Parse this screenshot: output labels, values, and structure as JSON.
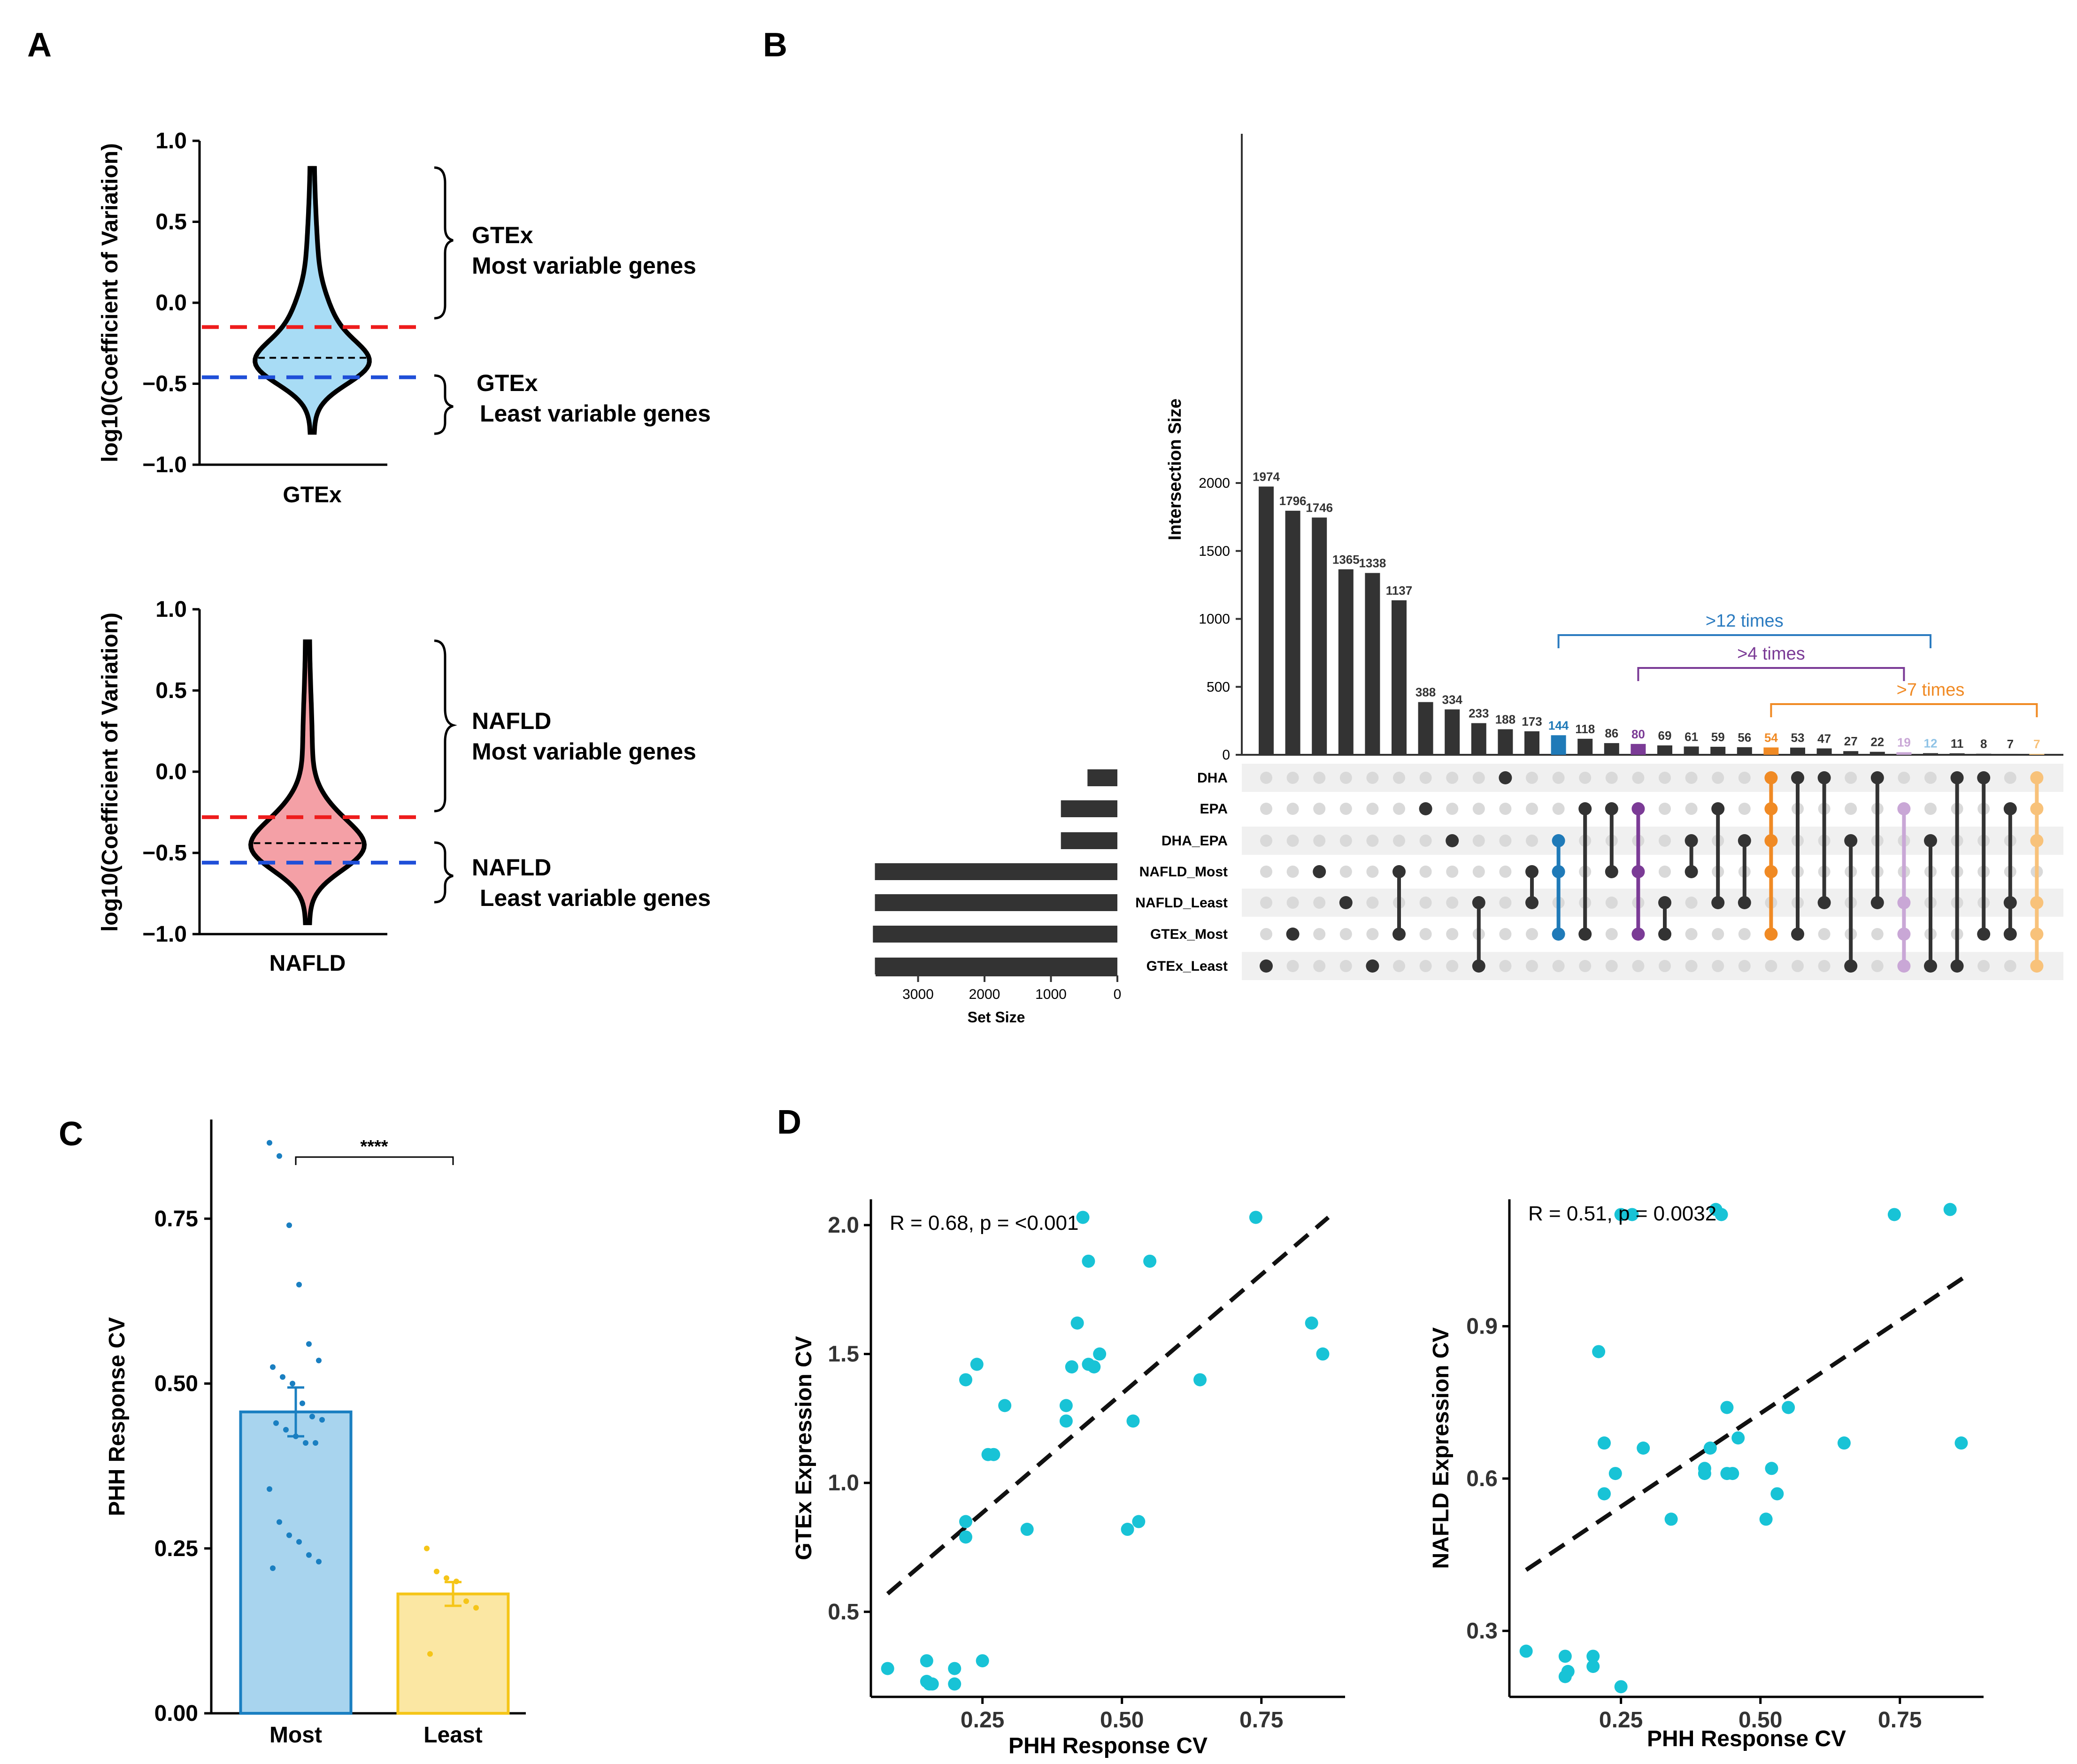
{
  "panel_labels": [
    "A",
    "B",
    "C",
    "D"
  ],
  "chart_data": [
    {
      "id": "A_top",
      "type": "violin",
      "group": "GTEx",
      "ylabel": "log10(Coefficient of Variation)",
      "xlabel": "GTEx",
      "ylim": [
        -1.0,
        1.0
      ],
      "yticks": [
        "1.0",
        "0.5",
        "0.0",
        "−0.5",
        "−1.0"
      ],
      "range": [
        -0.8,
        0.83
      ],
      "median": -0.34,
      "most_threshold": -0.15,
      "least_threshold": -0.46,
      "fill": "#a8dcf5",
      "annotations": {
        "most_line1": "GTEx",
        "most_line2": "Most variable genes",
        "least_line1": "GTEx",
        "least_line2": "Least variable genes"
      }
    },
    {
      "id": "A_bottom",
      "type": "violin",
      "group": "NAFLD",
      "ylabel": "log10(Coefficient of Variation)",
      "xlabel": "NAFLD",
      "ylim": [
        -1.0,
        1.0
      ],
      "yticks": [
        "1.0",
        "0.5",
        "0.0",
        "−0.5",
        "−1.0"
      ],
      "range": [
        -0.93,
        0.8
      ],
      "median": -0.44,
      "most_threshold": -0.28,
      "least_threshold": -0.56,
      "fill": "#f4a0a6",
      "annotations": {
        "most_line1": "NAFLD",
        "most_line2": "Most variable genes",
        "least_line1": "NAFLD",
        "least_line2": "Least variable genes"
      }
    },
    {
      "id": "B",
      "type": "upset",
      "ylabel": "Intersection Size",
      "yticks": [
        0,
        500,
        1000,
        1500,
        2000
      ],
      "set_size_label": "Set Size",
      "set_size_ticks": [
        "3000",
        "2000",
        "1000",
        "0"
      ],
      "sets": [
        "DHA",
        "EPA",
        "DHA_EPA",
        "NAFLD_Most",
        "NAFLD_Least",
        "GTEx_Most",
        "GTEx_Least"
      ],
      "set_sizes": [
        450,
        850,
        850,
        3650,
        3650,
        3680,
        3650
      ],
      "intersection_sizes": [
        1974,
        1796,
        1746,
        1365,
        1338,
        1137,
        388,
        334,
        233,
        188,
        173,
        144,
        118,
        86,
        80,
        69,
        61,
        59,
        56,
        54,
        53,
        47,
        27,
        22,
        19,
        12,
        11,
        8,
        7,
        7
      ],
      "intersection_members": [
        [
          6
        ],
        [
          5
        ],
        [
          3
        ],
        [
          4
        ],
        [
          6
        ],
        [
          3,
          5
        ],
        [
          1
        ],
        [
          2
        ],
        [
          4,
          6
        ],
        [
          0
        ],
        [
          3,
          4
        ],
        [
          2,
          3,
          5
        ],
        [
          1,
          5
        ],
        [
          1,
          3
        ],
        [
          1,
          3,
          5
        ],
        [
          4,
          5
        ],
        [
          2,
          3
        ],
        [
          1,
          4
        ],
        [
          2,
          4
        ],
        [
          0,
          1,
          2,
          3,
          5
        ],
        [
          0,
          5
        ],
        [
          0,
          4
        ],
        [
          2,
          6
        ],
        [
          0,
          4
        ],
        [
          1,
          4,
          5,
          6
        ],
        [
          2,
          6
        ],
        [
          0,
          6
        ],
        [
          0,
          5
        ],
        [
          1,
          4,
          5
        ],
        [
          0,
          1,
          2,
          4,
          5,
          6
        ]
      ],
      "highlight_colors": [
        "#333333",
        "#333333",
        "#333333",
        "#333333",
        "#333333",
        "#333333",
        "#333333",
        "#333333",
        "#333333",
        "#333333",
        "#333333",
        "#1f7ab8",
        "#333333",
        "#333333",
        "#7b3b96",
        "#333333",
        "#333333",
        "#333333",
        "#333333",
        "#f08a24",
        "#333333",
        "#333333",
        "#333333",
        "#333333",
        "#c9a7d6",
        "#333333",
        "#333333",
        "#333333",
        "#333333",
        "#f8c27a"
      ],
      "label_colors": [
        "#333333",
        "#333333",
        "#333333",
        "#333333",
        "#333333",
        "#333333",
        "#333333",
        "#333333",
        "#333333",
        "#333333",
        "#333333",
        "#1f7ab8",
        "#333333",
        "#333333",
        "#7b3b96",
        "#333333",
        "#333333",
        "#333333",
        "#333333",
        "#f08a24",
        "#333333",
        "#333333",
        "#333333",
        "#333333",
        "#c9a7d6",
        "#8fc3e6",
        "#333333",
        "#333333",
        "#333333",
        "#f8c27a"
      ],
      "brackets": [
        {
          "label": ">12 times",
          "from": 11,
          "to": 25,
          "color": "#2b7bc0"
        },
        {
          "label": ">4 times",
          "from": 14,
          "to": 24,
          "color": "#7b3b96"
        },
        {
          "label": ">7 times",
          "from": 19,
          "to": 29,
          "color": "#f08a24"
        }
      ]
    },
    {
      "id": "C",
      "type": "bar",
      "ylabel": "PHH Response CV",
      "categories": [
        "Most",
        "Least"
      ],
      "values": [
        0.457,
        0.181
      ],
      "sem": [
        0.037,
        0.018
      ],
      "ylim": [
        0,
        0.9
      ],
      "yticks": [
        "0.00",
        "0.25",
        "0.50",
        "0.75"
      ],
      "colors": [
        "#a8d4ee",
        "#fbe7a3"
      ],
      "edge_colors": [
        "#1a7fc1",
        "#f5c518"
      ],
      "significance": "****",
      "points": [
        [
          0.865,
          0.845,
          0.74,
          0.65,
          0.56,
          0.535,
          0.525,
          0.51,
          0.5,
          0.47,
          0.45,
          0.445,
          0.44,
          0.43,
          0.42,
          0.41,
          0.41,
          0.34,
          0.29,
          0.27,
          0.26,
          0.24,
          0.23,
          0.22
        ],
        [
          0.25,
          0.215,
          0.205,
          0.2,
          0.17,
          0.16,
          0.09
        ]
      ]
    },
    {
      "id": "D_left",
      "type": "scatter",
      "xlabel": "PHH Response CV",
      "ylabel": "GTEx Expression CV",
      "stat_label": "R = 0.68, p = <0.001",
      "xlim": [
        0.05,
        0.9
      ],
      "ylim": [
        0.17,
        2.1
      ],
      "xticks": [
        "0.25",
        "0.50",
        "0.75"
      ],
      "yticks": [
        "0.5",
        "1.0",
        "1.5",
        "2.0"
      ],
      "regression": [
        [
          0.08,
          0.57
        ],
        [
          0.87,
          2.03
        ]
      ],
      "color": "#18c3d6",
      "x": [
        0.08,
        0.15,
        0.15,
        0.155,
        0.16,
        0.2,
        0.2,
        0.22,
        0.22,
        0.22,
        0.24,
        0.25,
        0.26,
        0.27,
        0.29,
        0.33,
        0.4,
        0.4,
        0.41,
        0.42,
        0.43,
        0.44,
        0.44,
        0.45,
        0.46,
        0.51,
        0.52,
        0.53,
        0.55,
        0.64,
        0.74,
        0.84,
        0.86
      ],
      "y": [
        0.28,
        0.23,
        0.31,
        0.22,
        0.22,
        0.22,
        0.28,
        0.79,
        0.85,
        1.4,
        1.46,
        0.31,
        1.11,
        1.11,
        1.3,
        0.82,
        1.24,
        1.3,
        1.45,
        1.62,
        2.03,
        1.46,
        1.86,
        1.45,
        1.5,
        0.82,
        1.24,
        0.85,
        1.86,
        1.4,
        2.03,
        1.62,
        1.5
      ]
    },
    {
      "id": "D_right",
      "type": "scatter",
      "xlabel": "PHH Response CV",
      "ylabel": "NAFLD Expression CV",
      "stat_label": "R = 0.51, p = 0.0032",
      "xlim": [
        0.05,
        0.9
      ],
      "ylim": [
        0.17,
        1.15
      ],
      "xticks": [
        "0.25",
        "0.50",
        "0.75"
      ],
      "yticks": [
        "0.3",
        "0.6",
        "0.9"
      ],
      "regression": [
        [
          0.08,
          0.42
        ],
        [
          0.87,
          1.0
        ]
      ],
      "color": "#18c3d6",
      "x": [
        0.08,
        0.15,
        0.15,
        0.155,
        0.2,
        0.2,
        0.21,
        0.22,
        0.22,
        0.24,
        0.25,
        0.25,
        0.27,
        0.29,
        0.34,
        0.4,
        0.4,
        0.41,
        0.42,
        0.43,
        0.44,
        0.44,
        0.45,
        0.46,
        0.51,
        0.52,
        0.53,
        0.55,
        0.65,
        0.74,
        0.84,
        0.86
      ],
      "y": [
        0.26,
        0.21,
        0.25,
        0.22,
        0.23,
        0.25,
        0.85,
        0.57,
        0.67,
        0.61,
        0.19,
        1.12,
        1.12,
        0.66,
        0.52,
        0.62,
        0.61,
        0.66,
        1.13,
        1.12,
        0.61,
        0.74,
        0.61,
        0.68,
        0.52,
        0.62,
        0.57,
        0.74,
        0.67,
        1.12,
        1.13,
        0.67
      ]
    }
  ]
}
